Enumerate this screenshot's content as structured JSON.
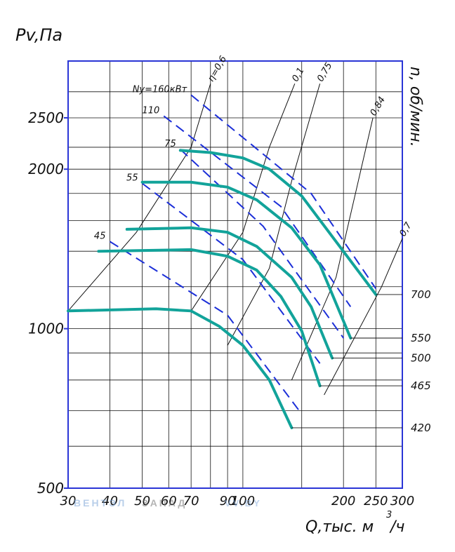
{
  "chart_data": {
    "type": "line",
    "ylabel": "Pv,Па",
    "xlabel": "Q,тыс. м",
    "xlabel_sup": "3",
    "xlabel_tail": "/ч",
    "right_axis_title": "n, об/мин.",
    "x_axis": {
      "scale": "log",
      "range": [
        30,
        300
      ],
      "ticks": [
        30,
        40,
        50,
        60,
        70,
        90,
        100,
        200,
        250,
        300
      ]
    },
    "y_axis": {
      "scale": "log",
      "range": [
        500,
        3200
      ],
      "ticks": [
        500,
        1000,
        2000,
        2500
      ]
    },
    "x_tick_labels": [
      "30",
      "40",
      "50",
      "60",
      "70",
      "90",
      "100",
      "200",
      "250",
      "300"
    ],
    "y_tick_labels": [
      "500",
      "1000",
      "2000",
      "2500"
    ],
    "grid": true,
    "colors": {
      "frame": "#2a35d6",
      "grid": "#111111",
      "speed_curve": "#12a39a",
      "power_curve": "#1c2fd8"
    },
    "speed_curves": [
      {
        "name": "700",
        "points": [
          [
            65,
            2170
          ],
          [
            80,
            2150
          ],
          [
            100,
            2100
          ],
          [
            120,
            2000
          ],
          [
            150,
            1780
          ],
          [
            190,
            1460
          ],
          [
            250,
            1160
          ]
        ]
      },
      {
        "name": "550",
        "points": [
          [
            50,
            1890
          ],
          [
            70,
            1890
          ],
          [
            90,
            1850
          ],
          [
            110,
            1750
          ],
          [
            140,
            1550
          ],
          [
            170,
            1320
          ],
          [
            210,
            960
          ]
        ]
      },
      {
        "name": "500",
        "points": [
          [
            45,
            1540
          ],
          [
            70,
            1550
          ],
          [
            90,
            1520
          ],
          [
            110,
            1430
          ],
          [
            140,
            1250
          ],
          [
            160,
            1100
          ],
          [
            185,
            880
          ]
        ]
      },
      {
        "name": "465",
        "points": [
          [
            37,
            1400
          ],
          [
            70,
            1410
          ],
          [
            90,
            1370
          ],
          [
            110,
            1290
          ],
          [
            130,
            1150
          ],
          [
            150,
            990
          ],
          [
            170,
            780
          ]
        ]
      },
      {
        "name": "420",
        "points": [
          [
            30,
            1080
          ],
          [
            55,
            1090
          ],
          [
            70,
            1080
          ],
          [
            85,
            1010
          ],
          [
            100,
            930
          ],
          [
            120,
            800
          ],
          [
            140,
            650
          ]
        ]
      }
    ],
    "efficiency_lines": [
      {
        "name": "η=0,6",
        "points": [
          [
            30,
            1080
          ],
          [
            48,
            1520
          ],
          [
            70,
            2200
          ],
          [
            80,
            2900
          ]
        ]
      },
      {
        "name": "0,1",
        "points": [
          [
            70,
            1080
          ],
          [
            100,
            1520
          ],
          [
            120,
            2200
          ],
          [
            143,
            2900
          ]
        ]
      },
      {
        "name": "0,75",
        "points": [
          [
            90,
            930
          ],
          [
            120,
            1300
          ],
          [
            140,
            1900
          ],
          [
            170,
            2900
          ]
        ]
      },
      {
        "name": "0,84",
        "points": [
          [
            140,
            800
          ],
          [
            190,
            1250
          ],
          [
            245,
            2500
          ]
        ]
      },
      {
        "name": "0,7",
        "points": [
          [
            175,
            750
          ],
          [
            260,
            1200
          ],
          [
            300,
            1480
          ]
        ]
      }
    ],
    "power_lines": [
      {
        "name": "160кВт",
        "points": [
          [
            70,
            2760
          ],
          [
            160,
            1800
          ],
          [
            250,
            1190
          ]
        ]
      },
      {
        "name": "110",
        "points": [
          [
            58,
            2520
          ],
          [
            130,
            1700
          ],
          [
            210,
            1100
          ]
        ]
      },
      {
        "name": "75",
        "points": [
          [
            65,
            2180
          ],
          [
            115,
            1560
          ],
          [
            200,
            960
          ]
        ]
      },
      {
        "name": "55",
        "points": [
          [
            50,
            1880
          ],
          [
            100,
            1350
          ],
          [
            170,
            860
          ]
        ]
      },
      {
        "name": "45",
        "points": [
          [
            40,
            1460
          ],
          [
            90,
            1060
          ],
          [
            150,
            690
          ]
        ]
      }
    ],
    "efficiency_labels": [
      "η=0,6",
      "0,1",
      "0,75",
      "0,84",
      "0,7"
    ],
    "power_labels": [
      "Ny=160кВт",
      "110",
      "75",
      "55",
      "45"
    ],
    "speed_labels": [
      "700",
      "550",
      "500",
      "465",
      "420"
    ]
  },
  "watermark": {
    "part1": "ВЕНТЭЛ",
    "part2": "ЗАПАД",
    "part3": "VV.BY"
  }
}
